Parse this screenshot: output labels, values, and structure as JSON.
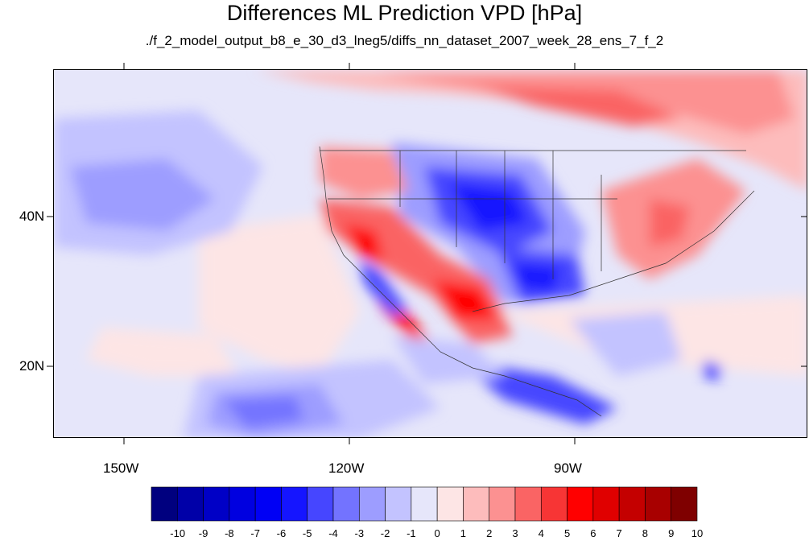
{
  "title": "Differences ML Prediction VPD [hPa]",
  "subtitle": "./f_2_model_output_b8_e_30_d3_lneg5/diffs_nn_dataset_2007_week_28_ens_7_f_2",
  "axes": {
    "lat_labels": [
      "40N",
      "20N"
    ],
    "lon_labels": [
      "150W",
      "120W",
      "90W"
    ]
  },
  "colorbar": {
    "labels": [
      "-10",
      "-9",
      "-8",
      "-7",
      "-6",
      "-5",
      "-4",
      "-3",
      "-2",
      "-1",
      "0",
      "1",
      "2",
      "3",
      "4",
      "5",
      "6",
      "7",
      "8",
      "9",
      "10"
    ],
    "colors": [
      "#00007f",
      "#0000a8",
      "#0000c6",
      "#0000e0",
      "#0000f5",
      "#1515ff",
      "#4646ff",
      "#7373ff",
      "#9d9dff",
      "#c3c3ff",
      "#e6e6fa",
      "#fde5e5",
      "#fdbcbc",
      "#fc9191",
      "#fa6464",
      "#f73535",
      "#ff0000",
      "#e00000",
      "#c40000",
      "#a80000",
      "#7f0000"
    ]
  }
}
